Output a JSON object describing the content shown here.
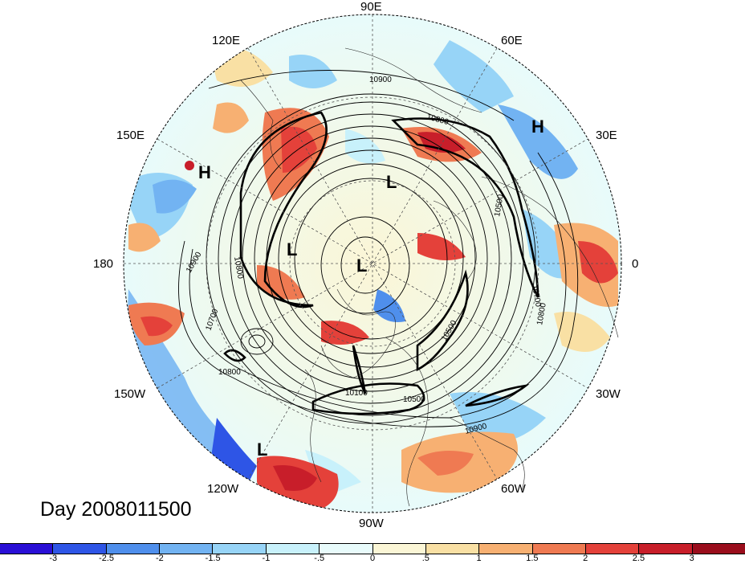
{
  "title": "Day 2008011500",
  "longitude_labels": {
    "e90": "90E",
    "e60": "60E",
    "e30": "30E",
    "zero": "0",
    "w30": "30W",
    "w60": "60W",
    "w90": "90W",
    "w120": "120W",
    "w150": "150W",
    "dateline": "180",
    "e150": "150E",
    "e120": "120E"
  },
  "pressure_centers": {
    "h_left": "H",
    "h_right": "H",
    "l_top": "L",
    "l_mid": "L",
    "l_center": "L",
    "l_bottom": "L"
  },
  "contour_labels": [
    "10900",
    "10800",
    "10500",
    "10700",
    "10800",
    "10500",
    "10100",
    "10500",
    "10800",
    "10900",
    "10700",
    "10800",
    "10900"
  ],
  "colorbar": {
    "levels": [
      "-3",
      "-2.5",
      "-2",
      "-1.5",
      "-1",
      "-.5",
      "0",
      ".5",
      "1",
      "1.5",
      "2",
      "2.5",
      "3"
    ],
    "colors": [
      "#2a0fd6",
      "#2e55e6",
      "#4f8fec",
      "#72b3f2",
      "#97d4f7",
      "#c8f1fb",
      "#e8fbfb",
      "#fbf6d6",
      "#f9e0a4",
      "#f7b072",
      "#ef7a52",
      "#e4413a",
      "#c81e2a",
      "#9a0d1c"
    ]
  }
}
